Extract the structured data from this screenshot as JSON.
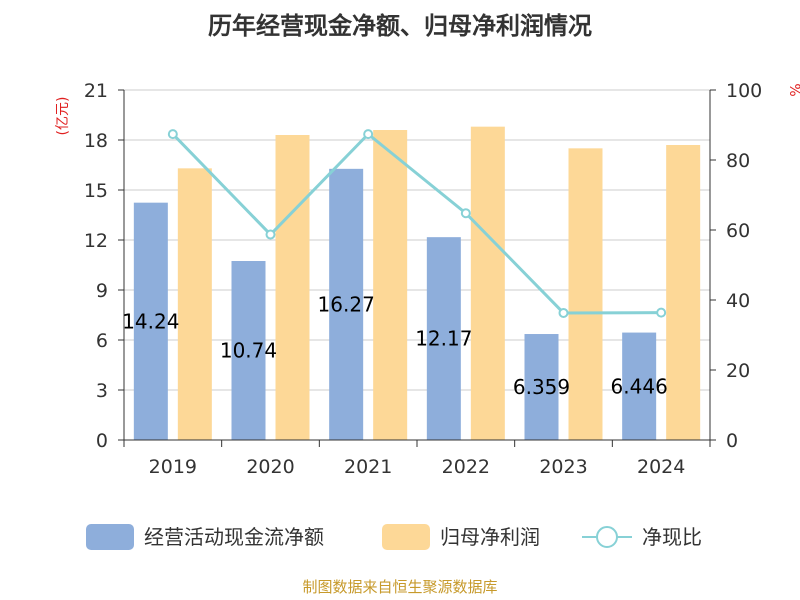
{
  "chart_data": {
    "type": "bar+line",
    "title": "历年经营现金净额、归母净利润情况",
    "categories": [
      "2019",
      "2020",
      "2021",
      "2022",
      "2023",
      "2024"
    ],
    "series": [
      {
        "name": "经营活动现金流净额",
        "type": "bar",
        "axis": "left",
        "color": "#8eaedb",
        "values": [
          14.24,
          10.74,
          16.27,
          12.17,
          6.359,
          6.446
        ],
        "labels": [
          "14.24",
          "10.74",
          "16.27",
          "12.17",
          "6.359",
          "6.446"
        ]
      },
      {
        "name": "归母净利润",
        "type": "bar",
        "axis": "left",
        "color": "#fdd897",
        "values": [
          16.3,
          18.3,
          18.6,
          18.8,
          17.5,
          17.7
        ]
      },
      {
        "name": "净现比",
        "type": "line",
        "axis": "right",
        "color": "#87d1d6",
        "values": [
          87.4,
          58.7,
          87.4,
          64.8,
          36.3,
          36.4
        ]
      }
    ],
    "left_axis": {
      "label": "(亿元)",
      "min": 0,
      "max": 21,
      "ticks": [
        0,
        3,
        6,
        9,
        12,
        15,
        18,
        21
      ]
    },
    "right_axis": {
      "label": "%",
      "min": 0,
      "max": 100,
      "ticks": [
        0,
        20,
        40,
        60,
        80,
        100
      ]
    },
    "legend_position": "bottom",
    "grid": true
  },
  "source": "制图数据来自恒生聚源数据库",
  "colors": {
    "axis_unit": "#e02020",
    "source": "#c79a2b",
    "grid": "#cccccc",
    "axis": "#333333"
  }
}
